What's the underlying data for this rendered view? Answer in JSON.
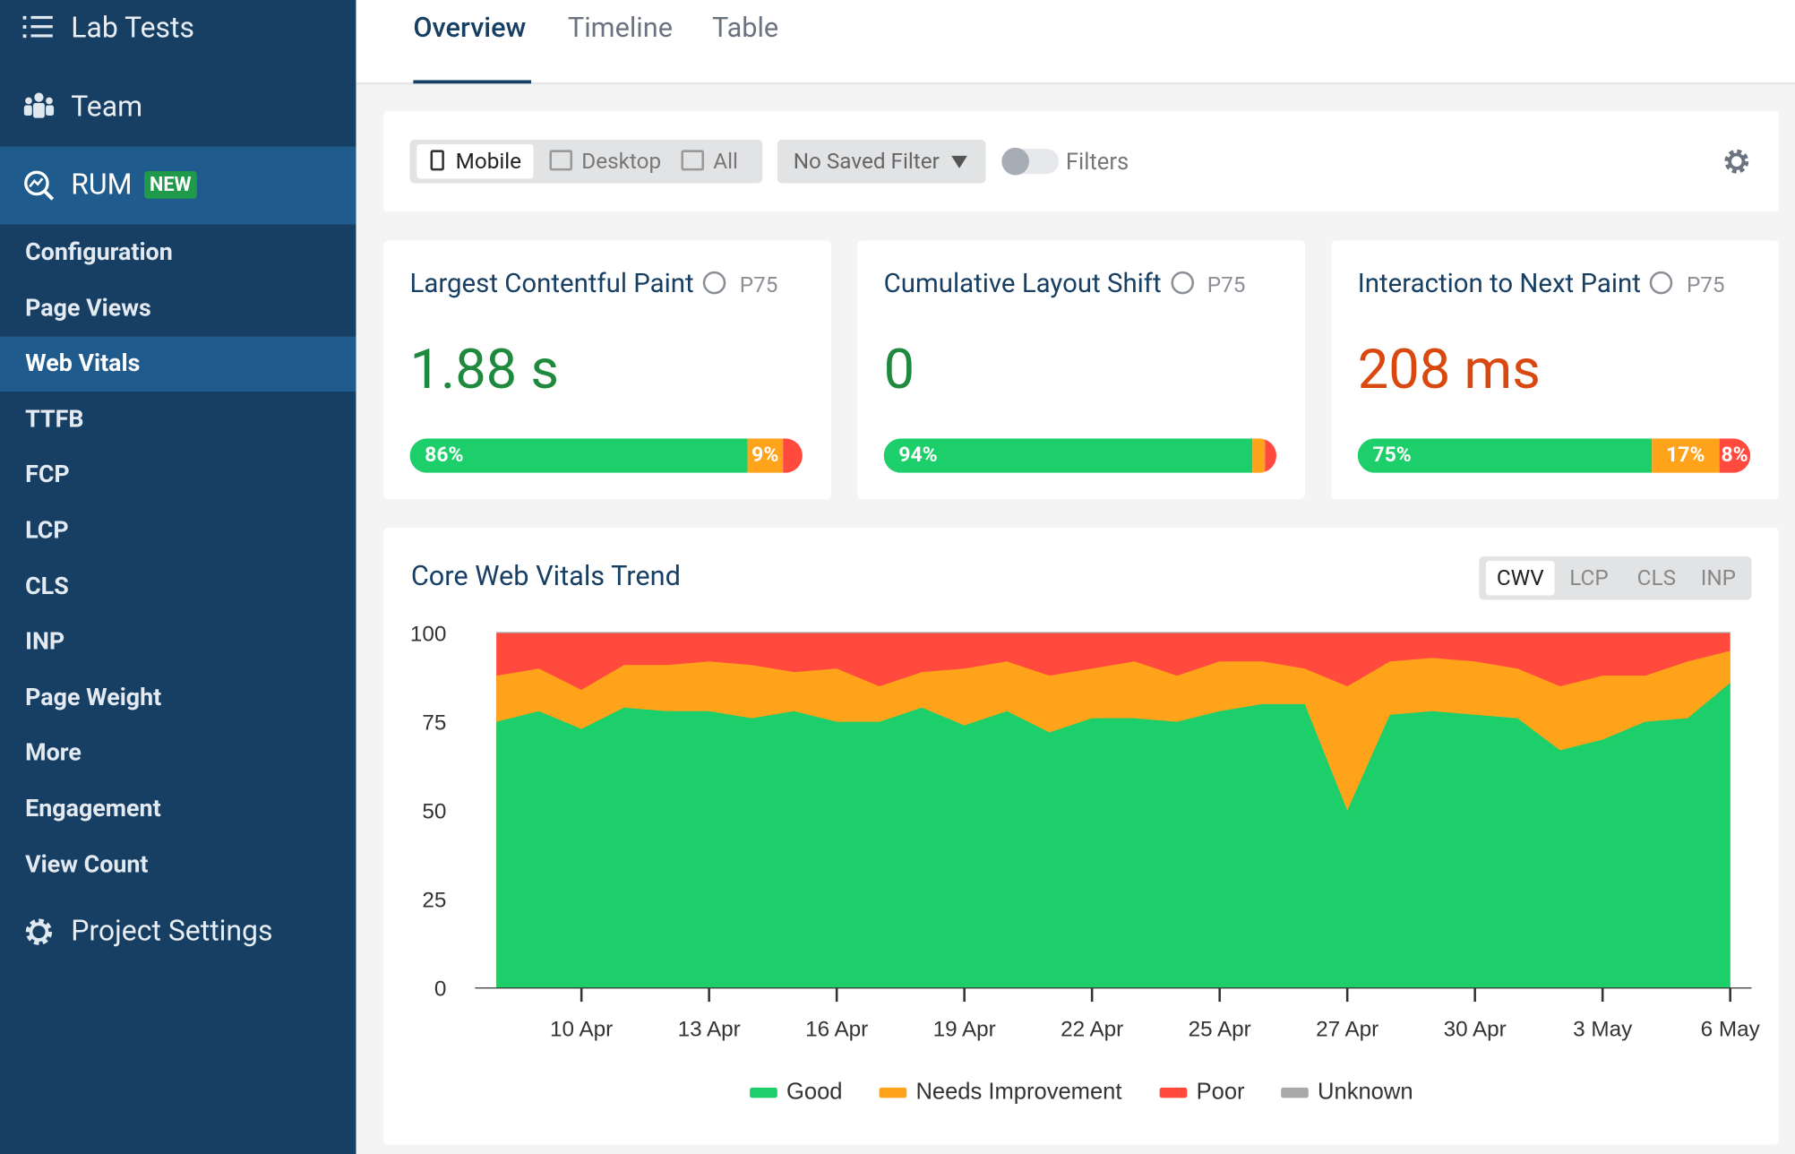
{
  "sidebar": {
    "top_items": [
      "Lab Tests",
      "Team"
    ],
    "rum": {
      "label": "RUM",
      "badge": "NEW"
    },
    "sub_items": [
      "Configuration",
      "Page Views",
      "Web Vitals",
      "TTFB",
      "FCP",
      "LCP",
      "CLS",
      "INP",
      "Page Weight",
      "More",
      "Engagement",
      "View Count"
    ],
    "active_sub_item": 2,
    "bottom_item": "Project Settings"
  },
  "tabs": {
    "items": [
      "Overview",
      "Timeline",
      "Table"
    ],
    "active": 0
  },
  "filter_bar": {
    "devices": [
      "Mobile",
      "Desktop",
      "All"
    ],
    "active_device": 0,
    "saved_filter": "No Saved Filter",
    "filters_label": "Filters"
  },
  "cards": [
    {
      "title": "Largest Contentful Paint",
      "percentile": "P75",
      "value": "1.88 s",
      "value_color": "#1f8a3e",
      "segments": [
        86,
        9,
        5
      ],
      "value_labels": [
        "86%",
        "9%",
        null
      ]
    },
    {
      "title": "Cumulative Layout Shift",
      "percentile": "P75",
      "value": "0",
      "value_color": "#1f8a3e",
      "segments": [
        94,
        3,
        3
      ],
      "value_labels": [
        "94%",
        null,
        null
      ]
    },
    {
      "title": "Interaction to Next Paint",
      "percentile": "P75",
      "value": "208 ms",
      "value_color": "#d9480f",
      "segments": [
        75,
        17,
        8
      ],
      "value_labels": [
        "75%",
        "17%",
        "8%"
      ]
    }
  ],
  "segment_colors": [
    "#1ccf6a",
    "#ffa31a",
    "#ff4a3d"
  ],
  "chart_toggle": {
    "items": [
      "CWV",
      "LCP",
      "CLS",
      "INP"
    ],
    "active": 0
  },
  "chart_data": {
    "type": "stacked_area",
    "title": "Core Web Vitals Trend",
    "categories": [
      null,
      null,
      "10 Apr",
      null,
      null,
      "13 Apr",
      null,
      null,
      "16 Apr",
      null,
      null,
      "19 Apr",
      null,
      null,
      "22 Apr",
      null,
      null,
      "25 Apr",
      null,
      null,
      "27 Apr",
      null,
      null,
      "30 Apr",
      null,
      null,
      "3 May",
      null,
      null,
      "6 May"
    ],
    "series": [
      {
        "name": "Good",
        "color": "#1ccf6a",
        "values": [
          75,
          78,
          73,
          79,
          78,
          78,
          76,
          78,
          75,
          75,
          79,
          74,
          78,
          72,
          76,
          76,
          75,
          78,
          80,
          80,
          50,
          77,
          78,
          77,
          76,
          67,
          70,
          75,
          76,
          86
        ]
      },
      {
        "name": "Needs Improvement",
        "color": "#ffa31a",
        "values": [
          13,
          12,
          11,
          12,
          13,
          14,
          15,
          11,
          15,
          10,
          10,
          16,
          14,
          16,
          14,
          16,
          13,
          14,
          12,
          10,
          35,
          15,
          15,
          15,
          14,
          18,
          18,
          13,
          16,
          9
        ]
      },
      {
        "name": "Poor",
        "color": "#ff4a3d",
        "values": [
          12,
          10,
          16,
          9,
          9,
          8,
          9,
          11,
          10,
          15,
          11,
          10,
          8,
          12,
          10,
          8,
          12,
          8,
          8,
          10,
          15,
          8,
          7,
          8,
          10,
          15,
          12,
          12,
          8,
          5
        ]
      },
      {
        "name": "Unknown",
        "color": "#a9a9a9",
        "values": [
          0,
          0,
          0,
          0,
          0,
          0,
          0,
          0,
          0,
          0,
          0,
          0,
          0,
          0,
          0,
          0,
          0,
          0,
          0,
          0,
          0,
          0,
          0,
          0,
          0,
          0,
          0,
          0,
          0,
          0
        ]
      }
    ],
    "ylim": [
      0,
      100
    ],
    "yticks": [
      0,
      25,
      50,
      75,
      100
    ],
    "grid": false
  }
}
